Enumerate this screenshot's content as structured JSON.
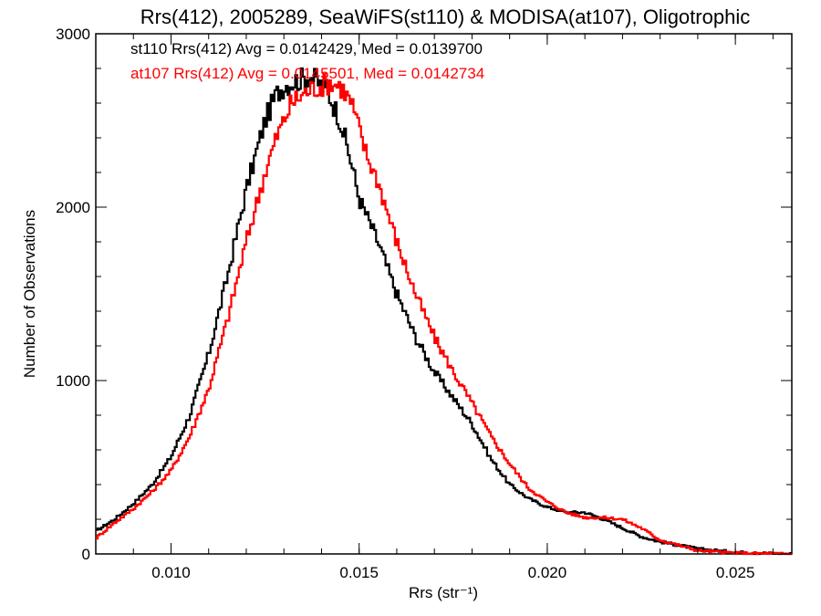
{
  "chart_data": {
    "type": "line",
    "title": "Rrs(412), 2005289, SeaWiFS(st110) & MODISA(at107), Oligotrophic",
    "xlabel": "Rrs (str⁻¹)",
    "ylabel": "Number of Observations",
    "xlim": [
      0.008,
      0.0265
    ],
    "ylim": [
      0,
      3000
    ],
    "xticks": [
      0.01,
      0.015,
      0.02,
      0.025
    ],
    "xtick_labels": [
      "0.010",
      "0.015",
      "0.020",
      "0.025"
    ],
    "yticks": [
      0,
      1000,
      2000,
      3000
    ],
    "ytick_labels": [
      "0",
      "1000",
      "2000",
      "3000"
    ],
    "grid": false,
    "legend_placement": "top-left",
    "series": [
      {
        "name": "st110 Rrs(412) Avg = 0.0142429, Med = 0.0139700",
        "color": "#000000",
        "x": [
          0.008,
          0.0085,
          0.009,
          0.0095,
          0.01,
          0.0105,
          0.011,
          0.0115,
          0.012,
          0.0125,
          0.0128,
          0.013,
          0.0132,
          0.0135,
          0.0137,
          0.014,
          0.0142,
          0.0145,
          0.0148,
          0.015,
          0.0152,
          0.0155,
          0.016,
          0.0165,
          0.017,
          0.0175,
          0.018,
          0.0185,
          0.019,
          0.0195,
          0.02,
          0.0205,
          0.021,
          0.0215,
          0.022,
          0.0225,
          0.023,
          0.024,
          0.025,
          0.0265
        ],
        "values": [
          130,
          200,
          290,
          400,
          560,
          800,
          1150,
          1600,
          2100,
          2500,
          2650,
          2700,
          2720,
          2740,
          2760,
          2700,
          2650,
          2500,
          2250,
          2050,
          1950,
          1800,
          1500,
          1250,
          1050,
          900,
          750,
          550,
          400,
          320,
          270,
          240,
          240,
          200,
          150,
          100,
          70,
          30,
          10,
          0
        ]
      },
      {
        "name": "at107 Rrs(412) Avg = 0.0145501, Med = 0.0142734",
        "color": "#ff0000",
        "x": [
          0.008,
          0.0085,
          0.009,
          0.0095,
          0.01,
          0.0105,
          0.011,
          0.0115,
          0.012,
          0.0125,
          0.0128,
          0.013,
          0.0132,
          0.0135,
          0.0137,
          0.014,
          0.0142,
          0.0145,
          0.0148,
          0.015,
          0.0152,
          0.0155,
          0.016,
          0.0165,
          0.017,
          0.0175,
          0.018,
          0.0185,
          0.019,
          0.0195,
          0.02,
          0.0205,
          0.021,
          0.0215,
          0.022,
          0.0225,
          0.023,
          0.024,
          0.025,
          0.0265
        ],
        "values": [
          90,
          180,
          260,
          360,
          480,
          680,
          950,
          1350,
          1800,
          2200,
          2400,
          2500,
          2600,
          2650,
          2680,
          2700,
          2720,
          2700,
          2600,
          2450,
          2300,
          2150,
          1800,
          1500,
          1250,
          1050,
          870,
          680,
          520,
          380,
          300,
          240,
          210,
          210,
          200,
          150,
          80,
          20,
          5,
          0
        ]
      }
    ]
  }
}
